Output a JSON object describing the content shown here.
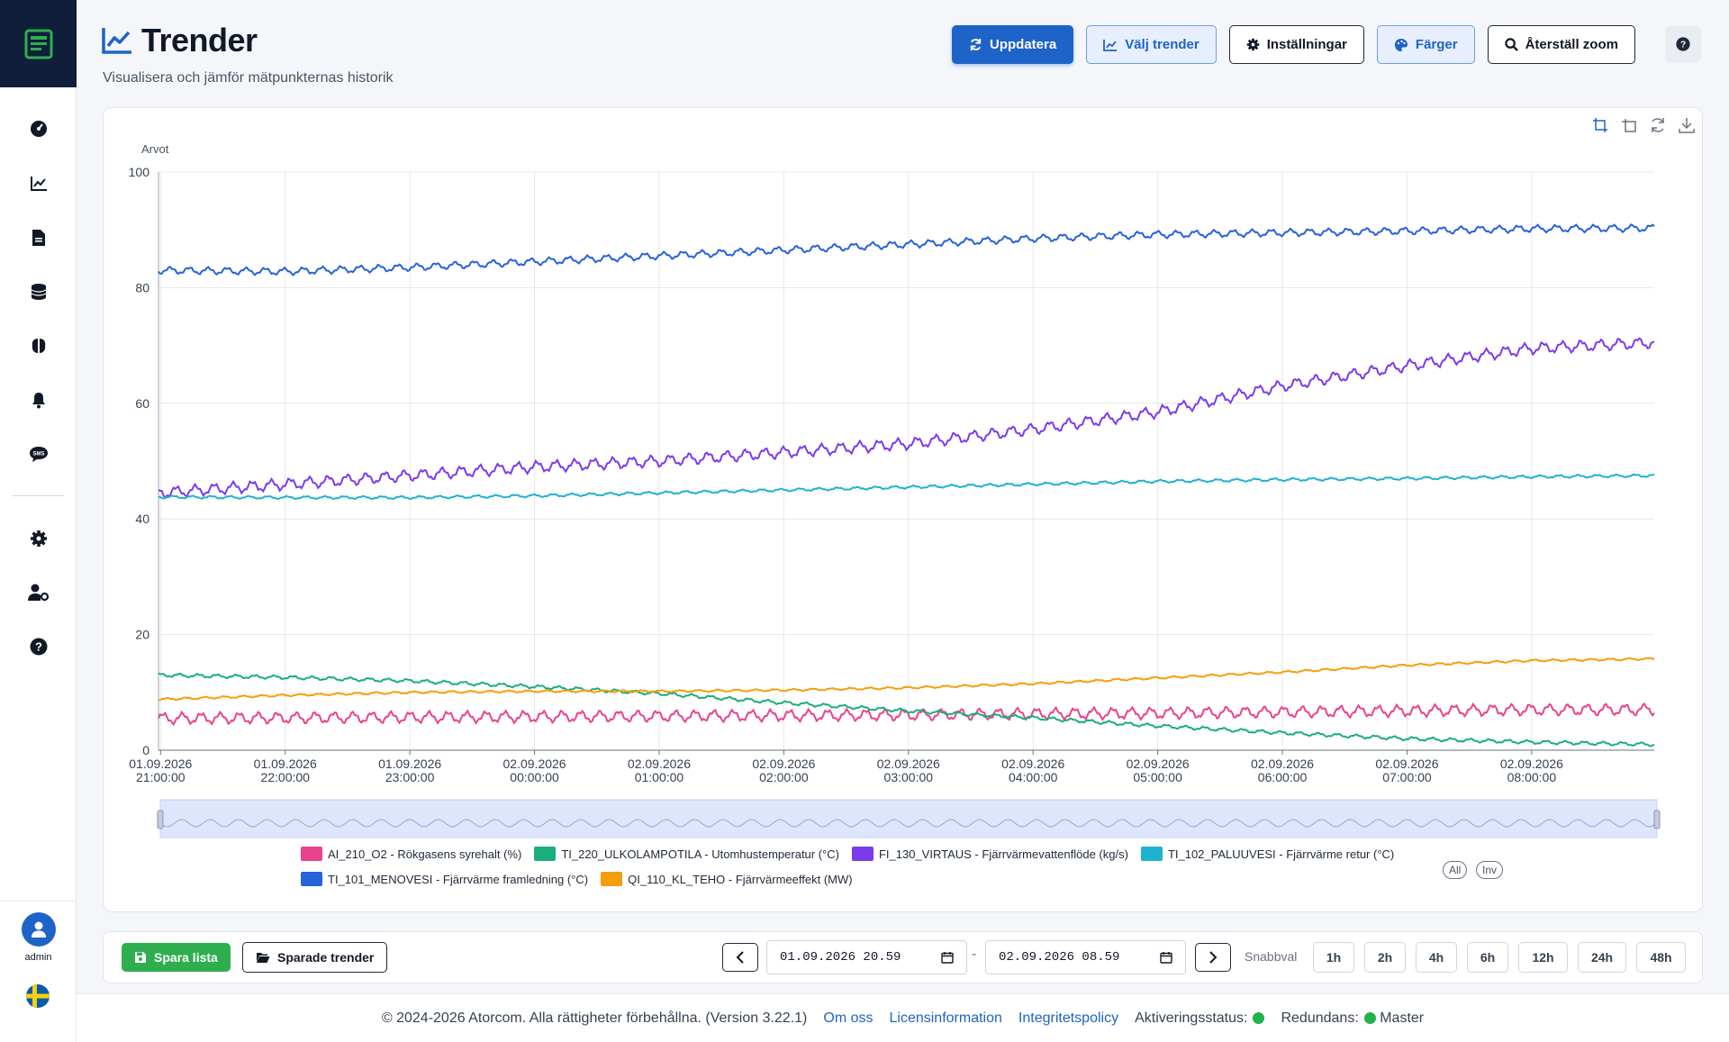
{
  "sidebar": {
    "items": [
      {
        "name": "dashboard-icon"
      },
      {
        "name": "trend-icon"
      },
      {
        "name": "report-icon"
      },
      {
        "name": "database-icon"
      },
      {
        "name": "brain-icon"
      },
      {
        "name": "bell-icon"
      },
      {
        "name": "sms-icon"
      },
      {
        "name": "settings-icon"
      },
      {
        "name": "user-settings-icon"
      },
      {
        "name": "help-icon"
      }
    ],
    "user": "admin"
  },
  "header": {
    "title": "Trender",
    "subtitle": "Visualisera och jämför mätpunkternas historik"
  },
  "toolbar": {
    "refresh": "Uppdatera",
    "select_trends": "Välj trender",
    "settings": "Inställningar",
    "colors": "Färger",
    "reset_zoom": "Återställ zoom"
  },
  "chart_data": {
    "type": "line",
    "ylabel": "Arvot",
    "ylim": [
      0,
      100
    ],
    "yticks": [
      0,
      20,
      40,
      60,
      80,
      100
    ],
    "x_ticks": [
      {
        "date": "01.09.2026",
        "time": "21:00:00"
      },
      {
        "date": "01.09.2026",
        "time": "22:00:00"
      },
      {
        "date": "01.09.2026",
        "time": "23:00:00"
      },
      {
        "date": "02.09.2026",
        "time": "00:00:00"
      },
      {
        "date": "02.09.2026",
        "time": "01:00:00"
      },
      {
        "date": "02.09.2026",
        "time": "02:00:00"
      },
      {
        "date": "02.09.2026",
        "time": "03:00:00"
      },
      {
        "date": "02.09.2026",
        "time": "04:00:00"
      },
      {
        "date": "02.09.2026",
        "time": "05:00:00"
      },
      {
        "date": "02.09.2026",
        "time": "06:00:00"
      },
      {
        "date": "02.09.2026",
        "time": "07:00:00"
      },
      {
        "date": "02.09.2026",
        "time": "08:00:00"
      }
    ],
    "x_range": [
      "01.09.2026 20:59",
      "02.09.2026 08:59"
    ],
    "grid": true,
    "series": [
      {
        "name": "AI_210_O2 - Rökgasens syrehalt (%)",
        "color": "#e8438f",
        "x": [
          "20:59",
          "22:00",
          "23:00",
          "00:00",
          "01:00",
          "02:00",
          "03:00",
          "04:00",
          "05:00",
          "06:00",
          "07:00",
          "08:00",
          "08:59"
        ],
        "y": [
          5.5,
          5.6,
          5.7,
          5.8,
          5.9,
          6.0,
          6.1,
          6.3,
          6.4,
          6.6,
          6.8,
          7.0,
          7.0
        ],
        "oscillation": 0.8
      },
      {
        "name": "TI_220_ULKOLAMPOTILA - Utomhustemperatur (°C)",
        "color": "#1aae7a",
        "x": [
          "20:59",
          "22:00",
          "23:00",
          "00:00",
          "01:00",
          "02:00",
          "03:00",
          "04:00",
          "05:00",
          "06:00",
          "07:00",
          "08:00",
          "08:59"
        ],
        "y": [
          13.0,
          12.6,
          12.0,
          11.0,
          9.8,
          8.2,
          6.8,
          5.6,
          4.2,
          3.0,
          2.0,
          1.4,
          1.0
        ],
        "oscillation": 0.25
      },
      {
        "name": "FI_130_VIRTAUS - Fjärrvärmevattenflöde (kg/s)",
        "color": "#7c3aed",
        "x": [
          "20:59",
          "22:00",
          "23:00",
          "00:00",
          "01:00",
          "02:00",
          "03:00",
          "04:00",
          "05:00",
          "06:00",
          "07:00",
          "08:00",
          "08:59"
        ],
        "y": [
          44.5,
          46.0,
          47.5,
          49.0,
          50.0,
          51.5,
          53.0,
          55.5,
          58.5,
          63.0,
          66.5,
          69.5,
          70.5
        ],
        "oscillation": 0.8
      },
      {
        "name": "TI_102_PALUUVESI - Fjärrvärme retur (°C)",
        "color": "#1fb2cf",
        "x": [
          "20:59",
          "22:00",
          "23:00",
          "00:00",
          "01:00",
          "02:00",
          "03:00",
          "04:00",
          "05:00",
          "06:00",
          "07:00",
          "08:00",
          "08:59"
        ],
        "y": [
          43.8,
          43.7,
          43.7,
          44.0,
          44.5,
          45.0,
          45.5,
          46.0,
          46.5,
          46.8,
          47.0,
          47.3,
          47.5
        ],
        "oscillation": 0.2
      },
      {
        "name": "TI_101_MENOVESI - Fjärrvärme framledning (°C)",
        "color": "#2563d9",
        "x": [
          "20:59",
          "22:00",
          "23:00",
          "00:00",
          "01:00",
          "02:00",
          "03:00",
          "04:00",
          "05:00",
          "06:00",
          "07:00",
          "08:00",
          "08:59"
        ],
        "y": [
          83.0,
          82.8,
          83.5,
          84.5,
          85.5,
          86.5,
          87.5,
          88.5,
          89.2,
          89.5,
          89.8,
          90.2,
          90.3
        ],
        "oscillation": 0.5
      },
      {
        "name": "QI_110_KL_TEHO - Fjärrvärmeeffekt (MW)",
        "color": "#f59e0b",
        "x": [
          "20:59",
          "22:00",
          "23:00",
          "00:00",
          "01:00",
          "02:00",
          "03:00",
          "04:00",
          "05:00",
          "06:00",
          "07:00",
          "08:00",
          "08:59"
        ],
        "y": [
          8.8,
          9.5,
          10.0,
          10.2,
          10.2,
          10.4,
          10.8,
          11.5,
          12.5,
          13.5,
          14.7,
          15.5,
          15.8
        ],
        "oscillation": 0.15
      }
    ]
  },
  "legend": {
    "all": "All",
    "inv": "Inv"
  },
  "bottom": {
    "save_list": "Spara lista",
    "saved_trends": "Sparade trender",
    "date_from": "01.09.2026  20.59",
    "date_to": "02.09.2026  08.59",
    "date_sep": "-",
    "quick_label": "Snabbval",
    "quick": [
      "1h",
      "2h",
      "4h",
      "6h",
      "12h",
      "24h",
      "48h"
    ]
  },
  "footer": {
    "copyright": "© 2024-2026 Atorcom. Alla rättigheter förbehållna. (Version 3.22.1)",
    "about": "Om oss",
    "license": "Licensinformation",
    "privacy": "Integritetspolicy",
    "activation": "Aktiveringsstatus:",
    "redundancy": "Redundans:",
    "master": "Master",
    "status_color": "#22b14c"
  }
}
